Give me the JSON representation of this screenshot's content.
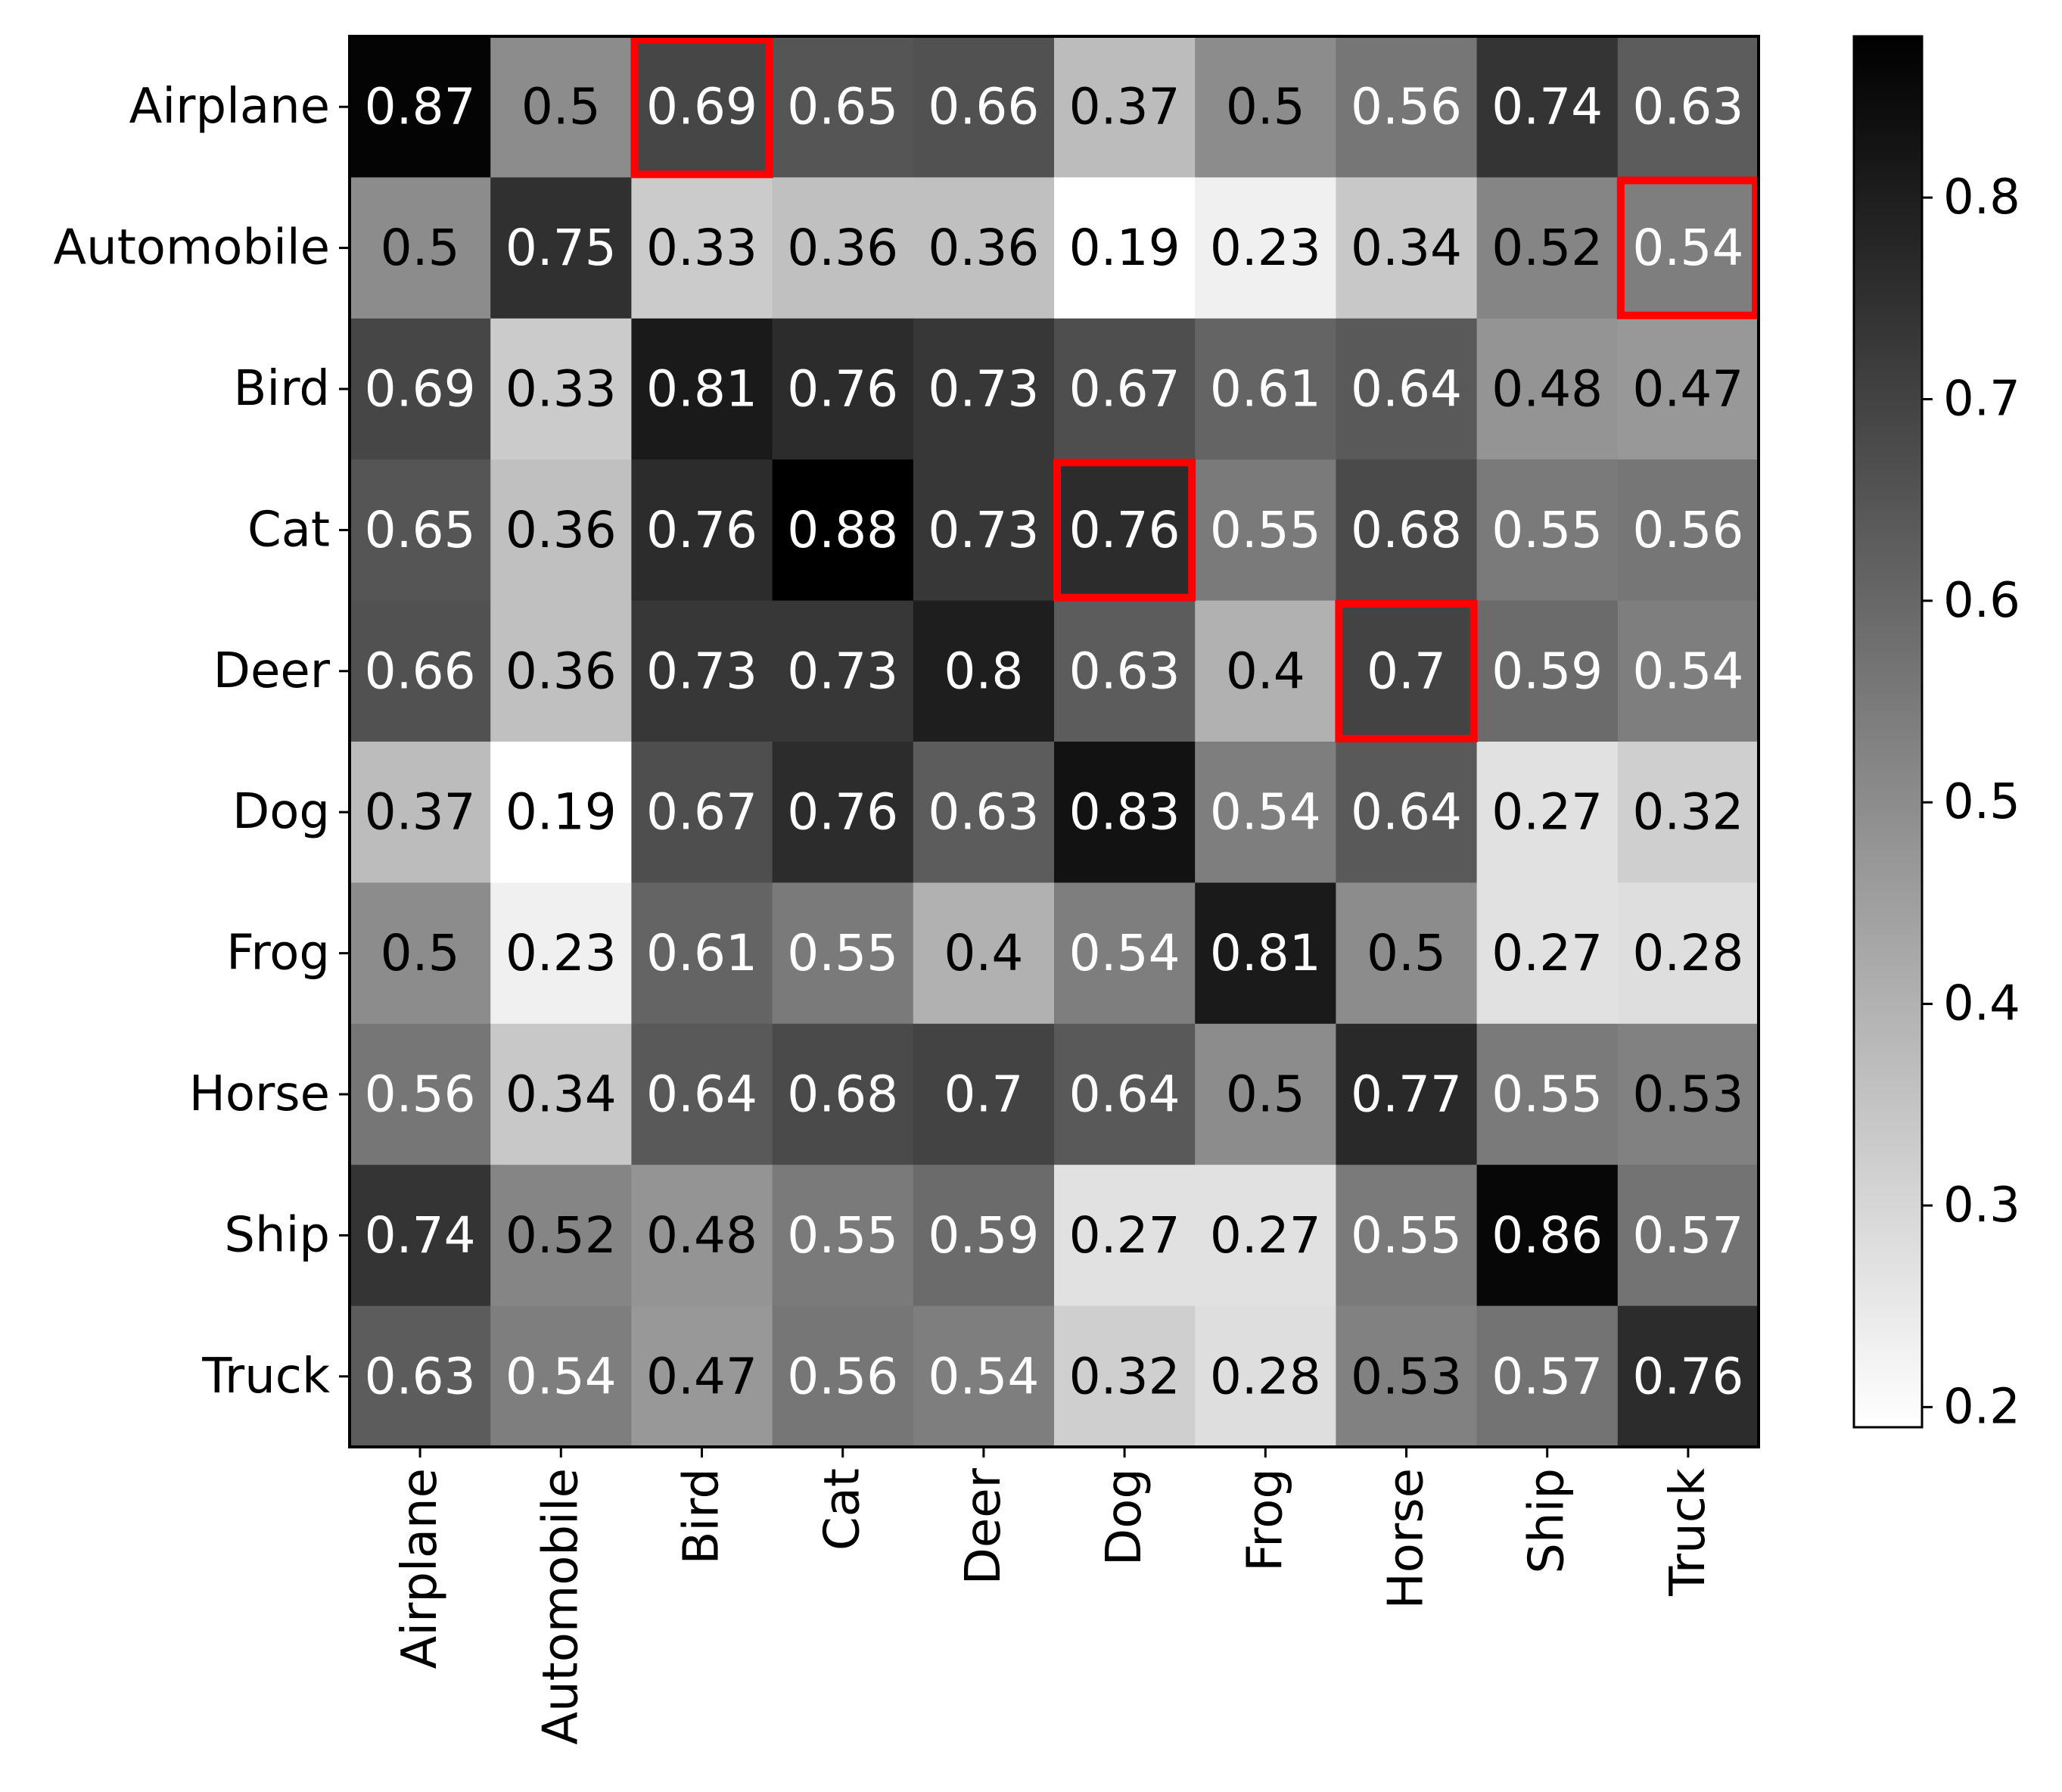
{
  "chart_data": {
    "type": "heatmap",
    "title": "",
    "xlabel": "",
    "ylabel": "",
    "row_labels": [
      "Airplane",
      "Automobile",
      "Bird",
      "Cat",
      "Deer",
      "Dog",
      "Frog",
      "Horse",
      "Ship",
      "Truck"
    ],
    "col_labels": [
      "Airplane",
      "Automobile",
      "Bird",
      "Cat",
      "Deer",
      "Dog",
      "Frog",
      "Horse",
      "Ship",
      "Truck"
    ],
    "values": [
      [
        0.87,
        0.5,
        0.69,
        0.65,
        0.66,
        0.37,
        0.5,
        0.56,
        0.74,
        0.63
      ],
      [
        0.5,
        0.75,
        0.33,
        0.36,
        0.36,
        0.19,
        0.23,
        0.34,
        0.52,
        0.54
      ],
      [
        0.69,
        0.33,
        0.81,
        0.76,
        0.73,
        0.67,
        0.61,
        0.64,
        0.48,
        0.47
      ],
      [
        0.65,
        0.36,
        0.76,
        0.88,
        0.73,
        0.76,
        0.55,
        0.68,
        0.55,
        0.56
      ],
      [
        0.66,
        0.36,
        0.73,
        0.73,
        0.8,
        0.63,
        0.4,
        0.7,
        0.59,
        0.54
      ],
      [
        0.37,
        0.19,
        0.67,
        0.76,
        0.63,
        0.83,
        0.54,
        0.64,
        0.27,
        0.32
      ],
      [
        0.5,
        0.23,
        0.61,
        0.55,
        0.4,
        0.54,
        0.81,
        0.5,
        0.27,
        0.28
      ],
      [
        0.56,
        0.34,
        0.64,
        0.68,
        0.7,
        0.64,
        0.5,
        0.77,
        0.55,
        0.53
      ],
      [
        0.74,
        0.52,
        0.48,
        0.55,
        0.59,
        0.27,
        0.27,
        0.55,
        0.86,
        0.57
      ],
      [
        0.63,
        0.54,
        0.47,
        0.56,
        0.54,
        0.32,
        0.28,
        0.53,
        0.57,
        0.76
      ]
    ],
    "value_labels": [
      [
        "0.87",
        "0.5",
        "0.69",
        "0.65",
        "0.66",
        "0.37",
        "0.5",
        "0.56",
        "0.74",
        "0.63"
      ],
      [
        "0.5",
        "0.75",
        "0.33",
        "0.36",
        "0.36",
        "0.19",
        "0.23",
        "0.34",
        "0.52",
        "0.54"
      ],
      [
        "0.69",
        "0.33",
        "0.81",
        "0.76",
        "0.73",
        "0.67",
        "0.61",
        "0.64",
        "0.48",
        "0.47"
      ],
      [
        "0.65",
        "0.36",
        "0.76",
        "0.88",
        "0.73",
        "0.76",
        "0.55",
        "0.68",
        "0.55",
        "0.56"
      ],
      [
        "0.66",
        "0.36",
        "0.73",
        "0.73",
        "0.8",
        "0.63",
        "0.4",
        "0.7",
        "0.59",
        "0.54"
      ],
      [
        "0.37",
        "0.19",
        "0.67",
        "0.76",
        "0.63",
        "0.83",
        "0.54",
        "0.64",
        "0.27",
        "0.32"
      ],
      [
        "0.5",
        "0.23",
        "0.61",
        "0.55",
        "0.4",
        "0.54",
        "0.81",
        "0.5",
        "0.27",
        "0.28"
      ],
      [
        "0.56",
        "0.34",
        "0.64",
        "0.68",
        "0.7",
        "0.64",
        "0.5",
        "0.77",
        "0.55",
        "0.53"
      ],
      [
        "0.74",
        "0.52",
        "0.48",
        "0.55",
        "0.59",
        "0.27",
        "0.27",
        "0.55",
        "0.86",
        "0.57"
      ],
      [
        "0.63",
        "0.54",
        "0.47",
        "0.56",
        "0.54",
        "0.32",
        "0.28",
        "0.53",
        "0.57",
        "0.76"
      ]
    ],
    "colormap": "Greys",
    "vmin": 0.19,
    "vmax": 0.88,
    "colorbar_ticks": [
      0.2,
      0.3,
      0.4,
      0.5,
      0.6,
      0.7,
      0.8
    ],
    "colorbar_tick_labels": [
      "0.2",
      "0.3",
      "0.4",
      "0.5",
      "0.6",
      "0.7",
      "0.8"
    ],
    "highlighted_cells": [
      [
        0,
        2
      ],
      [
        1,
        9
      ],
      [
        3,
        5
      ],
      [
        4,
        7
      ]
    ],
    "highlight_color": "#ff0000",
    "text_threshold": 0.535
  }
}
